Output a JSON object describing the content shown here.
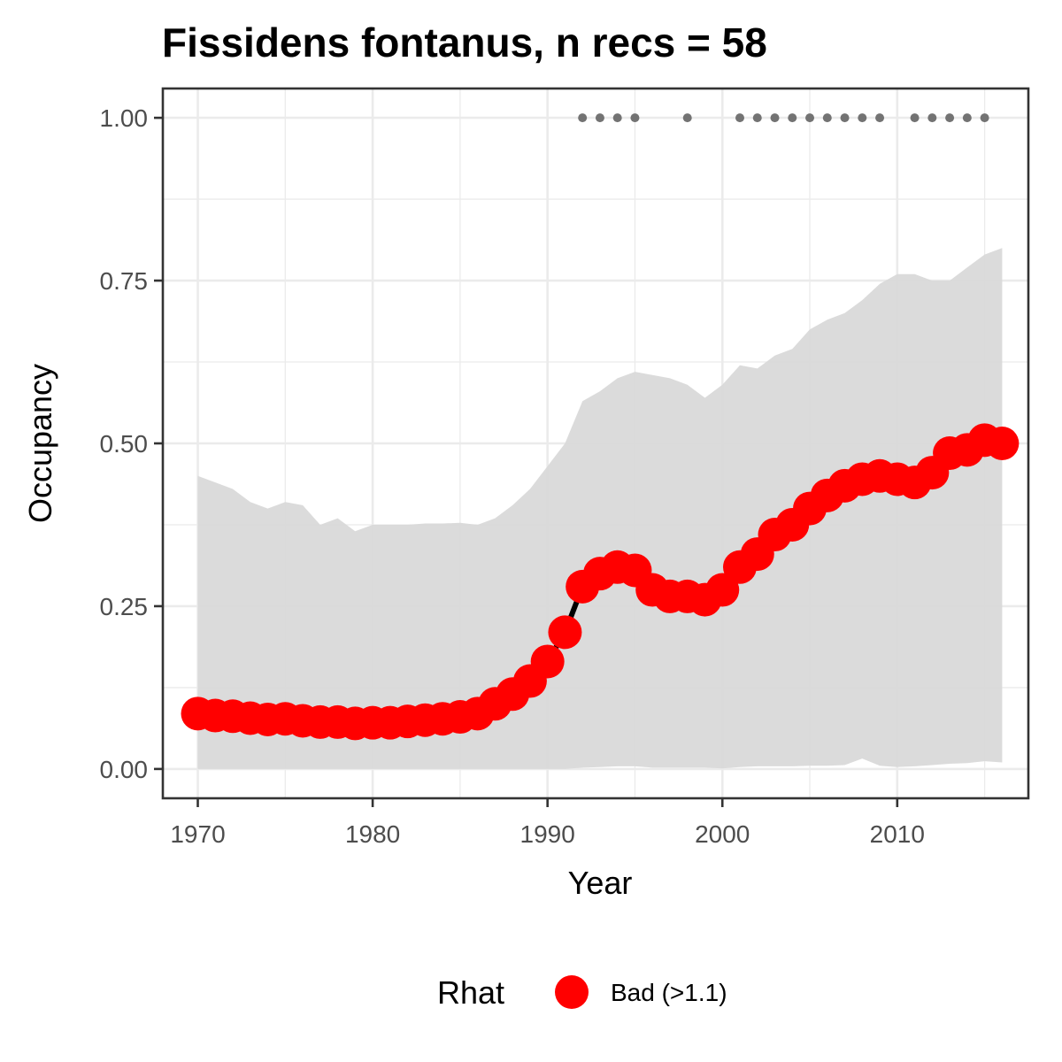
{
  "chart_data": {
    "type": "line",
    "title": "Fissidens fontanus, n recs = 58",
    "xlabel": "Year",
    "ylabel": "Occupancy",
    "xlim": [
      1968,
      2017.5
    ],
    "ylim": [
      -0.045,
      1.045
    ],
    "x_ticks": [
      1970,
      1980,
      1990,
      2000,
      2010
    ],
    "x_tick_labels": [
      "1970",
      "1980",
      "1990",
      "2000",
      "2010"
    ],
    "y_ticks": [
      0,
      0.25,
      0.5,
      0.75,
      1.0
    ],
    "y_tick_labels": [
      "0.00",
      "0.25",
      "0.50",
      "0.75",
      "1.00"
    ],
    "grid": true,
    "legend": {
      "title": "Rhat",
      "placement": "bottom",
      "entries": [
        {
          "label": "Bad (>1.1)",
          "color": "#ff0000"
        }
      ]
    },
    "colors": {
      "points": "#ff0000",
      "line": "#000000",
      "ribbon": "#d9d9d9",
      "records": "#737373",
      "panel_border": "#333333",
      "grid": "#ebebeb"
    },
    "years": [
      1970,
      1971,
      1972,
      1973,
      1974,
      1975,
      1976,
      1977,
      1978,
      1979,
      1980,
      1981,
      1982,
      1983,
      1984,
      1985,
      1986,
      1987,
      1988,
      1989,
      1990,
      1991,
      1992,
      1993,
      1994,
      1995,
      1996,
      1997,
      1998,
      1999,
      2000,
      2001,
      2002,
      2003,
      2004,
      2005,
      2006,
      2007,
      2008,
      2009,
      2010,
      2011,
      2012,
      2013,
      2014,
      2015,
      2016
    ],
    "occupancy": [
      0.085,
      0.082,
      0.081,
      0.078,
      0.076,
      0.077,
      0.074,
      0.072,
      0.072,
      0.07,
      0.071,
      0.071,
      0.073,
      0.075,
      0.077,
      0.08,
      0.085,
      0.1,
      0.115,
      0.135,
      0.165,
      0.21,
      0.28,
      0.3,
      0.31,
      0.305,
      0.275,
      0.265,
      0.265,
      0.26,
      0.275,
      0.31,
      0.33,
      0.36,
      0.375,
      0.4,
      0.42,
      0.435,
      0.445,
      0.45,
      0.445,
      0.44,
      0.455,
      0.485,
      0.49,
      0.505,
      0.5
    ],
    "upper": [
      0.45,
      0.44,
      0.43,
      0.41,
      0.4,
      0.41,
      0.405,
      0.375,
      0.385,
      0.365,
      0.375,
      0.375,
      0.375,
      0.377,
      0.377,
      0.378,
      0.375,
      0.385,
      0.405,
      0.43,
      0.465,
      0.5,
      0.565,
      0.58,
      0.6,
      0.61,
      0.605,
      0.6,
      0.59,
      0.57,
      0.59,
      0.62,
      0.615,
      0.635,
      0.645,
      0.675,
      0.69,
      0.7,
      0.72,
      0.745,
      0.76,
      0.76,
      0.75,
      0.75,
      0.77,
      0.79,
      0.8
    ],
    "lower": [
      0,
      0,
      0,
      0,
      0,
      0,
      0,
      0,
      0,
      0,
      0,
      0,
      0,
      0,
      0,
      0,
      0,
      0,
      0,
      0,
      0,
      0,
      0.002,
      0.003,
      0.004,
      0.004,
      0.002,
      0.002,
      0.002,
      0.002,
      0.001,
      0.003,
      0.004,
      0.004,
      0.004,
      0.005,
      0.005,
      0.006,
      0.016,
      0.005,
      0.003,
      0.004,
      0.006,
      0.008,
      0.009,
      0.012,
      0.01
    ],
    "record_years": [
      1992,
      1993,
      1994,
      1995,
      1998,
      2001,
      2002,
      2003,
      2004,
      2005,
      2006,
      2007,
      2008,
      2009,
      2011,
      2012,
      2013,
      2014,
      2015
    ],
    "record_y": 1.0
  }
}
